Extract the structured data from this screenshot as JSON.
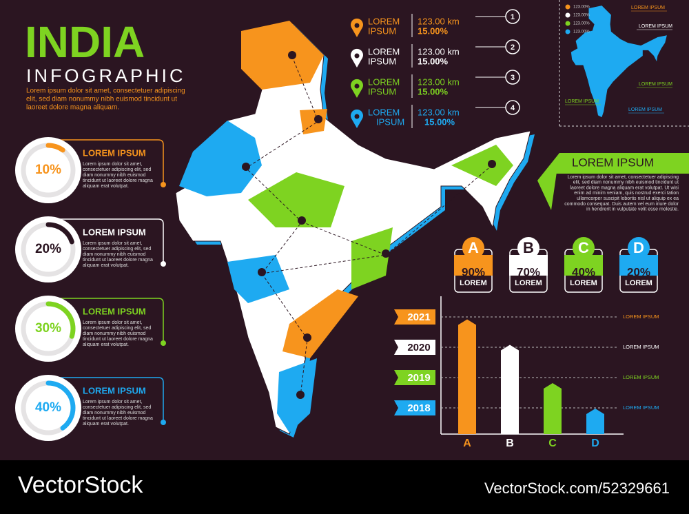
{
  "header": {
    "title": "INDIA",
    "subtitle": "INFOGRAPHIC",
    "text": [
      "Lorem ipsum dolor sit amet, consectetuer adipiscing",
      "elit, sed diam nonummy nibh euismod tincidunt ut",
      "laoreet dolore magna aliquam."
    ]
  },
  "rings": [
    {
      "value": 10,
      "label": "10%",
      "color": "#f7941d",
      "title": "LOREM IPSUM",
      "text": [
        "Lorem ipsum dolor sit amet,",
        "consectetuer adipiscing elit, sed",
        "diam nonummy nibh euismod",
        "tincidunt ut laoreet dolore magna",
        "aliquam erat volutpat."
      ]
    },
    {
      "value": 20,
      "label": "20%",
      "color": "#ffffff",
      "title": "LOREM IPSUM",
      "text": [
        "Lorem ipsum dolor sit amet,",
        "consectetuer adipiscing elit, sed",
        "diam nonummy nibh euismod",
        "tincidunt ut laoreet dolore magna",
        "aliquam erat volutpat."
      ]
    },
    {
      "value": 30,
      "label": "30%",
      "color": "#7ed321",
      "title": "LOREM IPSUM",
      "text": [
        "Lorem ipsum dolor sit amet,",
        "consectetuer adipiscing elit, sed",
        "diam nonummy nibh euismod",
        "tincidunt ut laoreet dolore magna",
        "aliquam erat volutpat."
      ]
    },
    {
      "value": 40,
      "label": "40%",
      "color": "#1eaaf1",
      "title": "LOREM IPSUM",
      "text": [
        "Lorem ipsum dolor sit amet,",
        "consectetuer adipiscing elit, sed",
        "diam nonummy nibh euismod",
        "tincidunt ut laoreet dolore magna",
        "aliquam erat volutpat."
      ]
    }
  ],
  "locations": [
    {
      "number": 1,
      "name": [
        "LOREM",
        "IPSUM"
      ],
      "distance": "123.00 km",
      "percent": "15.00%",
      "color": "#f7941d"
    },
    {
      "number": 2,
      "name": [
        "LOREM",
        "IPSUM"
      ],
      "distance": "123.00 km",
      "percent": "15.00%",
      "color": "#ffffff"
    },
    {
      "number": 3,
      "name": [
        "LOREM",
        "IPSUM"
      ],
      "distance": "123.00 km",
      "percent": "15.00%",
      "color": "#7ed321"
    },
    {
      "number": 4,
      "name": [
        "LOREM",
        "IPSUM"
      ],
      "distance": "123.00 km",
      "percent": "15.00%",
      "color": "#1eaaf1"
    }
  ],
  "mini_map": {
    "legend": [
      {
        "label": "123.00%",
        "color": "#f7941d"
      },
      {
        "label": "123.00%",
        "color": "#ffffff"
      },
      {
        "label": "123.00%",
        "color": "#7ed321"
      },
      {
        "label": "123.00%",
        "color": "#1eaaf1"
      }
    ],
    "labels": [
      "LOREM IPSUM",
      "LOREM IPSUM",
      "LOREM IPSUM",
      "LOREM IPSUM",
      "LOREM IPSUM"
    ]
  },
  "info_box": {
    "title": "LOREM IPSUM",
    "text": [
      "Lorem ipsum dolor sit amet, consectetuer adipiscing",
      "elit, sed diam nonummy nibh euismod tincidunt ut",
      "laoreet dolore magna aliquam erat volutpat. Ut wisi",
      "enim ad minim veniam, quis nostrud exerci tation",
      "ullamcorper suscipit lobortis nisl ut aliquip ex ea",
      "commodo consequat. Duis autem vel eum iriure dolor",
      "in hendrerit in vulputate velit esse molestie."
    ]
  },
  "chart_data": {
    "type": "bar",
    "categories": [
      "A",
      "B",
      "C",
      "D"
    ],
    "values": [
      90,
      70,
      40,
      20
    ],
    "value_labels": [
      "90%",
      "70%",
      "40%",
      "20%"
    ],
    "badge_text": [
      "LOREM",
      "LOREM",
      "LOREM",
      "LOREM"
    ],
    "colors": [
      "#f7941d",
      "#ffffff",
      "#7ed321",
      "#1eaaf1"
    ],
    "ylim": [
      0,
      100
    ],
    "years": [
      {
        "label": 2021,
        "text": "LOREM IPSUM",
        "color": "#f7941d"
      },
      {
        "label": 2020,
        "text": "LOREM IPSUM",
        "color": "#ffffff"
      },
      {
        "label": 2019,
        "text": "LOREM IPSUM",
        "color": "#7ed321"
      },
      {
        "label": 2018,
        "text": "LOREM IPSUM",
        "color": "#1eaaf1"
      }
    ]
  },
  "watermark": {
    "brand": "VectorStock",
    "id": "VectorStock.com/52329661"
  }
}
